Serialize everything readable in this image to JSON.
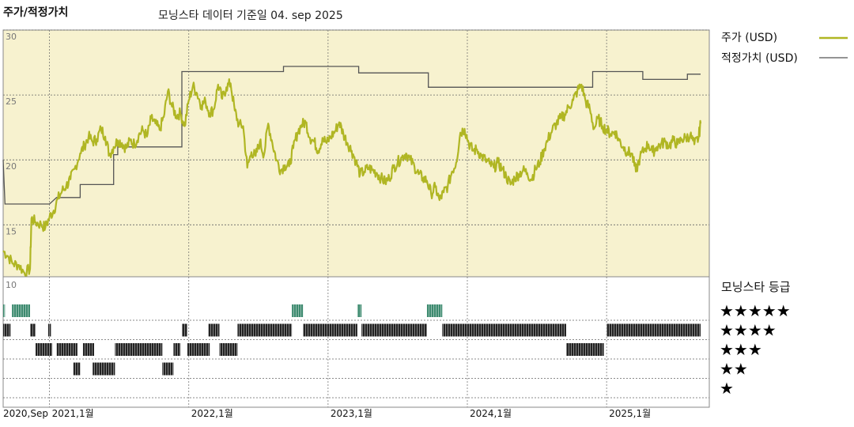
{
  "header": {
    "title": "주가/적정가치",
    "subtitle": "모닝스타 데이터 기준일 04. sep 2025"
  },
  "colors": {
    "price": "#b0b623",
    "fair_value": "#555555",
    "plot_bg": "#f7f2cf",
    "five_star": "#3d8a6f",
    "bar_black": "#222222",
    "grid": "#666666"
  },
  "chart_data": {
    "type": "line",
    "x_start": "2020-09",
    "x_end": "2025-09",
    "y_axis": {
      "ticks": [
        15,
        20,
        25,
        30
      ],
      "ylim": [
        11,
        30
      ]
    },
    "x_ticks": [
      {
        "label": "2020,Sep",
        "t": 2020.667
      },
      {
        "label": "2021,1월",
        "t": 2021.0
      },
      {
        "label": "2022,1월",
        "t": 2022.0
      },
      {
        "label": "2023,1월",
        "t": 2023.0
      },
      {
        "label": "2024,1월",
        "t": 2024.0
      },
      {
        "label": "2025,1월",
        "t": 2025.0
      }
    ],
    "series": [
      {
        "name": "주가 (USD)",
        "points": [
          [
            2020.667,
            13.0
          ],
          [
            2020.7,
            12.6
          ],
          [
            2020.74,
            12.0
          ],
          [
            2020.78,
            11.9
          ],
          [
            2020.82,
            11.3
          ],
          [
            2020.86,
            11.6
          ],
          [
            2020.87,
            15.5
          ],
          [
            2020.9,
            15.2
          ],
          [
            2020.94,
            15.0
          ],
          [
            2020.97,
            14.8
          ],
          [
            2021.0,
            15.6
          ],
          [
            2021.03,
            16.1
          ],
          [
            2021.06,
            17.0
          ],
          [
            2021.09,
            17.6
          ],
          [
            2021.12,
            18.0
          ],
          [
            2021.15,
            18.5
          ],
          [
            2021.18,
            19.3
          ],
          [
            2021.22,
            20.5
          ],
          [
            2021.25,
            21.1
          ],
          [
            2021.28,
            21.8
          ],
          [
            2021.31,
            21.4
          ],
          [
            2021.34,
            21.6
          ],
          [
            2021.37,
            22.4
          ],
          [
            2021.4,
            21.8
          ],
          [
            2021.43,
            20.4
          ],
          [
            2021.46,
            21.0
          ],
          [
            2021.49,
            21.5
          ],
          [
            2021.52,
            21.3
          ],
          [
            2021.55,
            20.9
          ],
          [
            2021.58,
            21.5
          ],
          [
            2021.61,
            21.2
          ],
          [
            2021.64,
            21.9
          ],
          [
            2021.67,
            22.3
          ],
          [
            2021.7,
            21.8
          ],
          [
            2021.73,
            23.2
          ],
          [
            2021.76,
            22.8
          ],
          [
            2021.79,
            22.3
          ],
          [
            2021.82,
            23.3
          ],
          [
            2021.85,
            25.3
          ],
          [
            2021.88,
            24.1
          ],
          [
            2021.91,
            23.4
          ],
          [
            2021.94,
            23.6
          ],
          [
            2021.97,
            22.6
          ],
          [
            2022.0,
            24.6
          ],
          [
            2022.03,
            25.7
          ],
          [
            2022.06,
            25.1
          ],
          [
            2022.09,
            24.2
          ],
          [
            2022.12,
            24.5
          ],
          [
            2022.15,
            23.6
          ],
          [
            2022.18,
            23.9
          ],
          [
            2022.21,
            25.8
          ],
          [
            2022.24,
            24.7
          ],
          [
            2022.27,
            25.6
          ],
          [
            2022.3,
            25.9
          ],
          [
            2022.33,
            23.8
          ],
          [
            2022.36,
            22.7
          ],
          [
            2022.39,
            22.6
          ],
          [
            2022.42,
            19.4
          ],
          [
            2022.45,
            20.6
          ],
          [
            2022.48,
            20.3
          ],
          [
            2022.51,
            21.4
          ],
          [
            2022.54,
            20.4
          ],
          [
            2022.57,
            22.8
          ],
          [
            2022.6,
            21.3
          ],
          [
            2022.63,
            20.0
          ],
          [
            2022.66,
            19.2
          ],
          [
            2022.69,
            19.6
          ],
          [
            2022.72,
            19.5
          ],
          [
            2022.75,
            20.9
          ],
          [
            2022.78,
            22.1
          ],
          [
            2022.81,
            22.7
          ],
          [
            2022.84,
            22.9
          ],
          [
            2022.87,
            21.7
          ],
          [
            2022.9,
            21.4
          ],
          [
            2022.93,
            20.7
          ],
          [
            2022.96,
            21.7
          ],
          [
            2022.99,
            21.3
          ],
          [
            2023.02,
            21.8
          ],
          [
            2023.05,
            22.2
          ],
          [
            2023.08,
            22.9
          ],
          [
            2023.11,
            22.0
          ],
          [
            2023.14,
            21.3
          ],
          [
            2023.17,
            20.7
          ],
          [
            2023.2,
            19.9
          ],
          [
            2023.23,
            18.9
          ],
          [
            2023.26,
            19.1
          ],
          [
            2023.29,
            19.4
          ],
          [
            2023.32,
            19.2
          ],
          [
            2023.35,
            19.0
          ],
          [
            2023.38,
            18.6
          ],
          [
            2023.41,
            18.3
          ],
          [
            2023.44,
            18.6
          ],
          [
            2023.47,
            19.4
          ],
          [
            2023.5,
            19.8
          ],
          [
            2023.53,
            20.2
          ],
          [
            2023.56,
            20.5
          ],
          [
            2023.59,
            20.0
          ],
          [
            2023.62,
            19.5
          ],
          [
            2023.65,
            18.9
          ],
          [
            2023.68,
            18.6
          ],
          [
            2023.71,
            18.4
          ],
          [
            2023.74,
            17.4
          ],
          [
            2023.77,
            17.9
          ],
          [
            2023.8,
            16.9
          ],
          [
            2023.83,
            17.5
          ],
          [
            2023.86,
            18.0
          ],
          [
            2023.89,
            19.1
          ],
          [
            2023.92,
            19.8
          ],
          [
            2023.95,
            22.1
          ],
          [
            2023.98,
            22.4
          ],
          [
            2024.01,
            21.3
          ],
          [
            2024.04,
            20.7
          ],
          [
            2024.07,
            20.8
          ],
          [
            2024.1,
            20.3
          ],
          [
            2024.13,
            20.0
          ],
          [
            2024.16,
            19.7
          ],
          [
            2024.19,
            19.4
          ],
          [
            2024.22,
            19.8
          ],
          [
            2024.25,
            19.3
          ],
          [
            2024.28,
            18.7
          ],
          [
            2024.31,
            18.1
          ],
          [
            2024.34,
            18.6
          ],
          [
            2024.37,
            18.9
          ],
          [
            2024.4,
            19.2
          ],
          [
            2024.43,
            19.0
          ],
          [
            2024.46,
            18.5
          ],
          [
            2024.49,
            19.3
          ],
          [
            2024.52,
            19.8
          ],
          [
            2024.55,
            20.8
          ],
          [
            2024.58,
            21.6
          ],
          [
            2024.61,
            22.3
          ],
          [
            2024.64,
            22.8
          ],
          [
            2024.67,
            23.2
          ],
          [
            2024.7,
            23.5
          ],
          [
            2024.73,
            24.1
          ],
          [
            2024.76,
            24.6
          ],
          [
            2024.79,
            25.3
          ],
          [
            2024.82,
            25.8
          ],
          [
            2024.85,
            24.5
          ],
          [
            2024.88,
            23.9
          ],
          [
            2024.91,
            22.4
          ],
          [
            2024.94,
            23.2
          ],
          [
            2024.97,
            22.6
          ],
          [
            2025.0,
            22.3
          ],
          [
            2025.03,
            22.0
          ],
          [
            2025.06,
            22.2
          ],
          [
            2025.09,
            21.5
          ],
          [
            2025.12,
            21.0
          ],
          [
            2025.15,
            20.6
          ],
          [
            2025.18,
            20.5
          ],
          [
            2025.21,
            19.1
          ],
          [
            2025.24,
            20.2
          ],
          [
            2025.27,
            20.8
          ],
          [
            2025.3,
            21.2
          ],
          [
            2025.33,
            20.6
          ],
          [
            2025.36,
            21.0
          ],
          [
            2025.39,
            21.2
          ],
          [
            2025.42,
            21.4
          ],
          [
            2025.45,
            21.1
          ],
          [
            2025.48,
            21.5
          ],
          [
            2025.51,
            21.2
          ],
          [
            2025.54,
            21.6
          ],
          [
            2025.57,
            21.7
          ],
          [
            2025.6,
            21.9
          ],
          [
            2025.63,
            21.2
          ],
          [
            2025.66,
            21.7
          ],
          [
            2025.675,
            22.8
          ]
        ]
      },
      {
        "name": "적정가치 (USD)",
        "steps": [
          [
            2020.667,
            20.0
          ],
          [
            2020.68,
            16.6
          ],
          [
            2021.0,
            16.6
          ],
          [
            2021.05,
            17.1
          ],
          [
            2021.22,
            17.1
          ],
          [
            2021.22,
            18.1
          ],
          [
            2021.46,
            18.1
          ],
          [
            2021.46,
            20.4
          ],
          [
            2021.49,
            20.4
          ],
          [
            2021.49,
            21.0
          ],
          [
            2021.95,
            21.0
          ],
          [
            2021.95,
            26.8
          ],
          [
            2022.68,
            26.8
          ],
          [
            2022.68,
            27.2
          ],
          [
            2023.22,
            27.2
          ],
          [
            2023.22,
            26.7
          ],
          [
            2023.72,
            26.7
          ],
          [
            2023.72,
            25.6
          ],
          [
            2024.9,
            25.6
          ],
          [
            2024.9,
            26.8
          ],
          [
            2025.26,
            26.8
          ],
          [
            2025.26,
            26.2
          ],
          [
            2025.58,
            26.2
          ],
          [
            2025.58,
            26.6
          ],
          [
            2025.675,
            26.6
          ]
        ]
      }
    ],
    "rating": {
      "title": "모닝스타 등급",
      "levels": [
        "★★★★★",
        "★★★★",
        "★★★",
        "★★",
        "★"
      ],
      "segments": [
        {
          "stars": 5,
          "from": 2020.667,
          "to": 2020.68
        },
        {
          "stars": 5,
          "from": 2020.73,
          "to": 2020.86
        },
        {
          "stars": 5,
          "from": 2022.74,
          "to": 2022.82
        },
        {
          "stars": 5,
          "from": 2023.21,
          "to": 2023.24
        },
        {
          "stars": 5,
          "from": 2023.71,
          "to": 2023.82
        },
        {
          "stars": 4,
          "from": 2020.667,
          "to": 2020.72
        },
        {
          "stars": 4,
          "from": 2020.86,
          "to": 2020.9
        },
        {
          "stars": 4,
          "from": 2020.99,
          "to": 2021.01
        },
        {
          "stars": 4,
          "from": 2021.95,
          "to": 2021.99
        },
        {
          "stars": 4,
          "from": 2022.14,
          "to": 2022.22
        },
        {
          "stars": 4,
          "from": 2022.35,
          "to": 2022.74
        },
        {
          "stars": 4,
          "from": 2022.82,
          "to": 2023.21
        },
        {
          "stars": 4,
          "from": 2023.24,
          "to": 2023.71
        },
        {
          "stars": 4,
          "from": 2023.82,
          "to": 2024.71
        },
        {
          "stars": 4,
          "from": 2025.0,
          "to": 2025.675
        },
        {
          "stars": 3,
          "from": 2020.9,
          "to": 2021.02
        },
        {
          "stars": 3,
          "from": 2021.05,
          "to": 2021.2
        },
        {
          "stars": 3,
          "from": 2021.24,
          "to": 2021.32
        },
        {
          "stars": 3,
          "from": 2021.47,
          "to": 2021.81
        },
        {
          "stars": 3,
          "from": 2021.89,
          "to": 2021.94
        },
        {
          "stars": 3,
          "from": 2021.99,
          "to": 2022.15
        },
        {
          "stars": 3,
          "from": 2022.22,
          "to": 2022.35
        },
        {
          "stars": 3,
          "from": 2024.71,
          "to": 2024.98
        },
        {
          "stars": 2,
          "from": 2021.17,
          "to": 2021.22
        },
        {
          "stars": 2,
          "from": 2021.31,
          "to": 2021.47
        },
        {
          "stars": 2,
          "from": 2021.81,
          "to": 2021.89
        }
      ]
    }
  }
}
